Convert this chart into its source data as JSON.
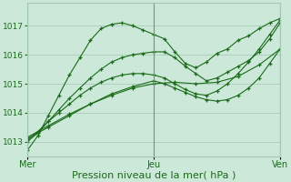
{
  "bg_color": "#cce8d8",
  "grid_color": "#a0c8b0",
  "line_color": "#1a6b1a",
  "marker_color": "#1a6b1a",
  "xlabel": "Pression niveau de la mer( hPa )",
  "xlabel_fontsize": 8,
  "xtick_labels": [
    "Mer",
    "Jeu",
    "Ven"
  ],
  "ylim": [
    1012.5,
    1017.8
  ],
  "ytick_vals": [
    1013,
    1014,
    1015,
    1016,
    1017
  ],
  "series": [
    {
      "x": [
        0,
        4,
        8,
        12,
        16,
        20,
        24,
        28,
        32,
        36,
        40,
        44,
        48,
        52,
        56,
        60,
        64,
        68,
        72,
        76,
        80,
        84,
        88,
        92,
        96
      ],
      "y": [
        1012.7,
        1013.2,
        1013.9,
        1014.6,
        1015.3,
        1015.9,
        1016.5,
        1016.9,
        1017.05,
        1017.1,
        1017.0,
        1016.85,
        1016.7,
        1016.55,
        1016.1,
        1015.7,
        1015.55,
        1015.75,
        1016.05,
        1016.2,
        1016.5,
        1016.65,
        1016.9,
        1017.1,
        1017.25
      ]
    },
    {
      "x": [
        0,
        4,
        8,
        12,
        16,
        20,
        24,
        28,
        32,
        36,
        40,
        44,
        48,
        52,
        56,
        60,
        64,
        68,
        72,
        76,
        80,
        84,
        88,
        92,
        96
      ],
      "y": [
        1013.0,
        1013.3,
        1013.7,
        1014.1,
        1014.5,
        1014.85,
        1015.2,
        1015.5,
        1015.75,
        1015.9,
        1016.0,
        1016.05,
        1016.1,
        1016.1,
        1015.9,
        1015.6,
        1015.35,
        1015.1,
        1015.2,
        1015.4,
        1015.6,
        1015.8,
        1016.1,
        1016.55,
        1017.1
      ]
    },
    {
      "x": [
        0,
        8,
        16,
        24,
        32,
        40,
        48,
        52,
        56,
        60,
        64,
        68,
        72,
        76,
        80,
        84,
        88,
        92,
        96
      ],
      "y": [
        1013.1,
        1013.5,
        1013.9,
        1014.3,
        1014.65,
        1014.9,
        1015.1,
        1015.0,
        1014.85,
        1014.7,
        1014.55,
        1014.45,
        1014.4,
        1014.45,
        1014.6,
        1014.85,
        1015.2,
        1015.7,
        1016.2
      ]
    },
    {
      "x": [
        0,
        4,
        8,
        12,
        16,
        20,
        24,
        28,
        32,
        36,
        40,
        44,
        48,
        52,
        56,
        60,
        64,
        68,
        72,
        76,
        80,
        84,
        88,
        92,
        96
      ],
      "y": [
        1013.05,
        1013.35,
        1013.7,
        1014.0,
        1014.3,
        1014.6,
        1014.85,
        1015.05,
        1015.2,
        1015.3,
        1015.35,
        1015.35,
        1015.3,
        1015.2,
        1015.0,
        1014.8,
        1014.65,
        1014.6,
        1014.75,
        1015.0,
        1015.35,
        1015.75,
        1016.2,
        1016.7,
        1017.2
      ]
    },
    {
      "x": [
        0,
        8,
        16,
        24,
        32,
        40,
        48,
        56,
        64,
        72,
        80,
        88,
        96
      ],
      "y": [
        1013.15,
        1013.55,
        1013.95,
        1014.3,
        1014.6,
        1014.85,
        1015.0,
        1015.05,
        1015.0,
        1015.05,
        1015.25,
        1015.65,
        1016.2
      ]
    }
  ],
  "xlim": [
    0,
    96
  ],
  "vline_x": [
    0,
    48,
    96
  ],
  "figsize": [
    3.2,
    2.0
  ],
  "dpi": 100
}
